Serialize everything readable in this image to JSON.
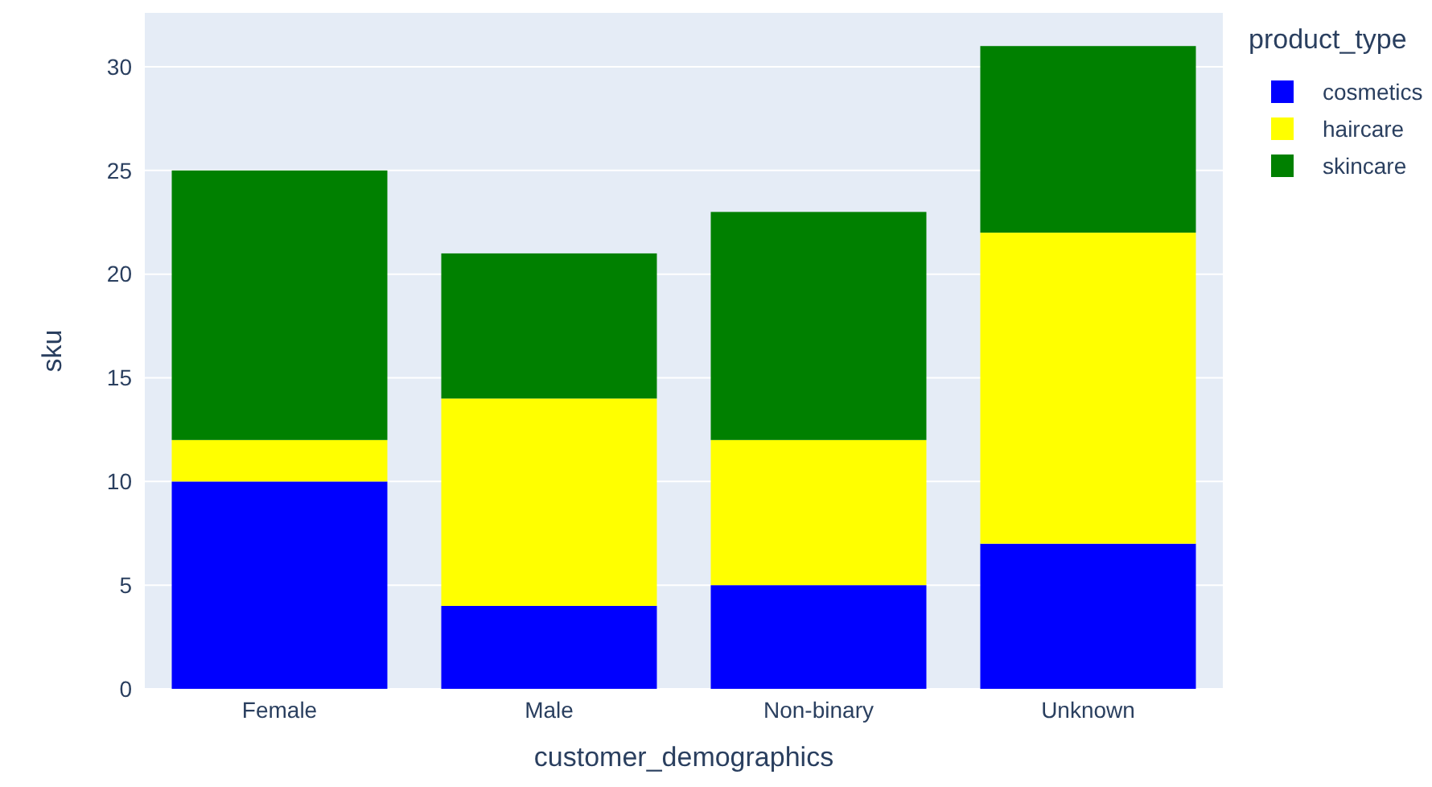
{
  "chart_data": {
    "type": "bar",
    "xlabel": "customer_demographics",
    "ylabel": "sku",
    "legend_title": "product_type",
    "categories": [
      "Female",
      "Male",
      "Non-binary",
      "Unknown"
    ],
    "stacked": true,
    "series": [
      {
        "name": "cosmetics",
        "color": "#0000ff",
        "values": [
          10,
          4,
          5,
          7
        ]
      },
      {
        "name": "haircare",
        "color": "#ffff00",
        "values": [
          2,
          10,
          7,
          15
        ]
      },
      {
        "name": "skincare",
        "color": "#008000",
        "values": [
          13,
          7,
          11,
          9
        ]
      }
    ],
    "ylim": [
      0,
      32.6
    ],
    "yticks": [
      0,
      5,
      10,
      15,
      20,
      25,
      30
    ],
    "grid": "y",
    "legend": "top right"
  }
}
